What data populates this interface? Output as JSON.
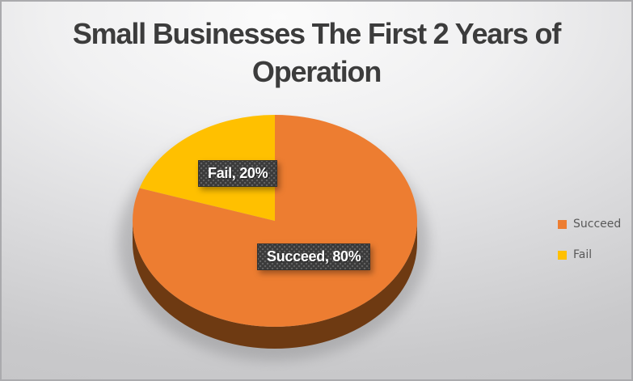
{
  "chart_data": {
    "type": "pie",
    "style": "3d",
    "title": "Small Businesses The First 2 Years of Operation",
    "categories": [
      "Succeed",
      "Fail"
    ],
    "values": [
      80,
      20
    ],
    "unit": "percent",
    "colors": [
      "#ED7D31",
      "#FFC000"
    ],
    "side_colors": [
      "#6E3A12",
      "#8A6800"
    ],
    "data_labels": [
      "Succeed, 80%",
      "Fail, 20%"
    ],
    "start_angle_deg": 0,
    "direction": "clockwise",
    "legend": {
      "position": "right",
      "entries": [
        "Succeed",
        "Fail"
      ]
    },
    "label_style": {
      "background": "#3A3A3A",
      "text_color": "#FFFFFF"
    },
    "title_color": "#3C3C3C",
    "background": {
      "gradient_center": "#FBFBFB",
      "gradient_edge": "#C8C8CA"
    }
  }
}
